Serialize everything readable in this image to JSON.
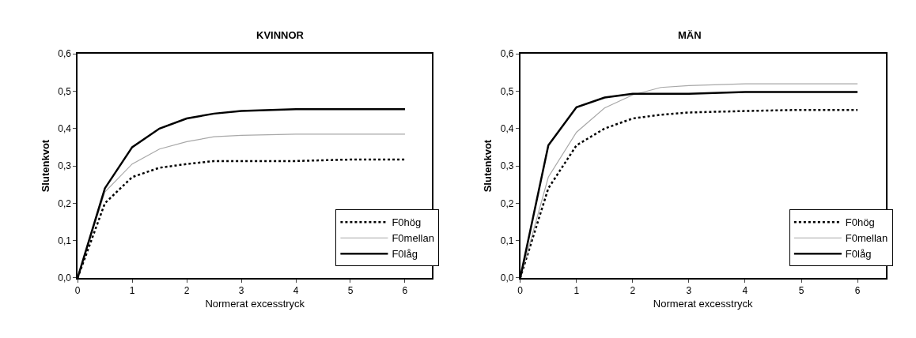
{
  "chart_data": [
    {
      "type": "line",
      "title": "KVINNOR",
      "xlabel": "Normerat excesstryck",
      "ylabel": "Slutenkvot",
      "x": [
        0,
        0.5,
        1,
        1.5,
        2,
        2.5,
        3,
        4,
        5,
        6
      ],
      "series": [
        {
          "name": "F0hög",
          "color": "#000000",
          "line_style": "dotted",
          "values": [
            0,
            0.2,
            0.27,
            0.295,
            0.305,
            0.313,
            0.313,
            0.313,
            0.317,
            0.317
          ]
        },
        {
          "name": "F0mellan",
          "color": "#a8a8a8",
          "line_style": "solid",
          "values": [
            0,
            0.23,
            0.305,
            0.345,
            0.365,
            0.378,
            0.382,
            0.385,
            0.385,
            0.385
          ]
        },
        {
          "name": "F0låg",
          "color": "#000000",
          "line_style": "solid",
          "values": [
            0,
            0.24,
            0.35,
            0.4,
            0.427,
            0.44,
            0.447,
            0.452,
            0.452,
            0.452
          ]
        }
      ],
      "xlim": [
        0,
        6.5
      ],
      "xticks": [
        0,
        1,
        2,
        3,
        4,
        5,
        6
      ],
      "ylim": [
        0,
        0.6
      ],
      "yticks": [
        {
          "value": 0,
          "label": "0,0"
        },
        {
          "value": 0.1,
          "label": "0,1"
        },
        {
          "value": 0.2,
          "label": "0,2"
        },
        {
          "value": 0.3,
          "label": "0,3"
        },
        {
          "value": 0.4,
          "label": "0,4"
        },
        {
          "value": 0.5,
          "label": "0,5"
        },
        {
          "value": 0.6,
          "label": "0,6"
        }
      ],
      "grid": false,
      "legend": "bottom right",
      "marker": "none"
    },
    {
      "type": "line",
      "title": "MÄN",
      "xlabel": "Normerat excesstryck",
      "ylabel": "Slutenkvot",
      "x": [
        0,
        0.5,
        1,
        1.5,
        2,
        2.5,
        3,
        4,
        5,
        6
      ],
      "series": [
        {
          "name": "F0hög",
          "color": "#000000",
          "line_style": "dotted",
          "values": [
            0,
            0.24,
            0.355,
            0.4,
            0.427,
            0.437,
            0.443,
            0.447,
            0.45,
            0.45
          ]
        },
        {
          "name": "F0mellan",
          "color": "#a8a8a8",
          "line_style": "solid",
          "values": [
            0,
            0.27,
            0.39,
            0.455,
            0.49,
            0.51,
            0.515,
            0.52,
            0.52,
            0.52
          ]
        },
        {
          "name": "F0låg",
          "color": "#000000",
          "line_style": "solid",
          "values": [
            0,
            0.355,
            0.457,
            0.483,
            0.493,
            0.493,
            0.493,
            0.498,
            0.498,
            0.498
          ]
        }
      ],
      "xlim": [
        0,
        6.5
      ],
      "xticks": [
        0,
        1,
        2,
        3,
        4,
        5,
        6
      ],
      "ylim": [
        0,
        0.6
      ],
      "yticks": [
        {
          "value": 0,
          "label": "0,0"
        },
        {
          "value": 0.1,
          "label": "0,1"
        },
        {
          "value": 0.2,
          "label": "0,2"
        },
        {
          "value": 0.3,
          "label": "0,3"
        },
        {
          "value": 0.4,
          "label": "0,4"
        },
        {
          "value": 0.5,
          "label": "0,5"
        },
        {
          "value": 0.6,
          "label": "0,6"
        }
      ],
      "grid": false,
      "legend": "bottom right",
      "marker": "none"
    }
  ]
}
